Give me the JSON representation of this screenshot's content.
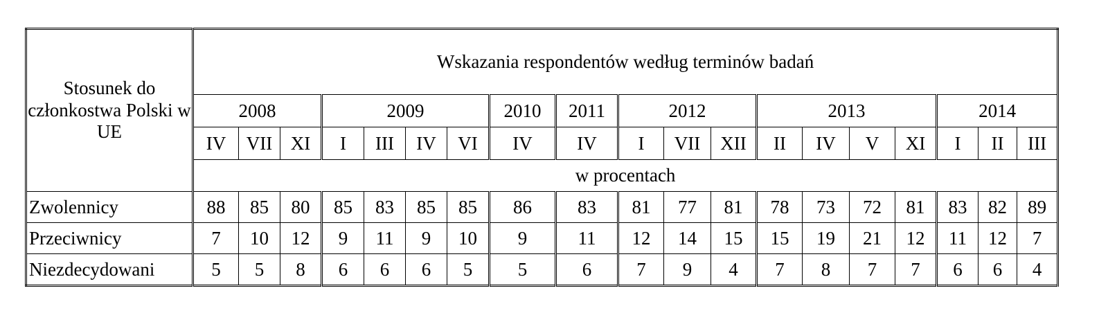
{
  "table": {
    "corner_header": "Stosunek do członkostwa Polski w UE",
    "title": "Wskazania respondentów według terminów badań",
    "unit_label": "w procentach",
    "years": [
      {
        "label": "2008",
        "months": [
          "IV",
          "VII",
          "XI"
        ]
      },
      {
        "label": "2009",
        "months": [
          "I",
          "III",
          "IV",
          "VI"
        ]
      },
      {
        "label": "2010",
        "months": [
          "IV"
        ]
      },
      {
        "label": "2011",
        "months": [
          "IV"
        ]
      },
      {
        "label": "2012",
        "months": [
          "I",
          "VII",
          "XII"
        ]
      },
      {
        "label": "2013",
        "months": [
          "II",
          "IV",
          "V",
          "XI"
        ]
      },
      {
        "label": "2014",
        "months": [
          "I",
          "II",
          "III"
        ]
      }
    ],
    "rows": [
      {
        "label": "Zwolennicy",
        "values": [
          "88",
          "85",
          "80",
          "85",
          "83",
          "85",
          "85",
          "86",
          "83",
          "81",
          "77",
          "81",
          "78",
          "73",
          "72",
          "81",
          "83",
          "82",
          "89"
        ]
      },
      {
        "label": "Przeciwnicy",
        "values": [
          "7",
          "10",
          "12",
          "9",
          "11",
          "9",
          "10",
          "9",
          "11",
          "12",
          "14",
          "15",
          "15",
          "19",
          "21",
          "12",
          "11",
          "12",
          "7"
        ]
      },
      {
        "label": "Niezdecydowani",
        "values": [
          "5",
          "5",
          "8",
          "6",
          "6",
          "6",
          "5",
          "5",
          "6",
          "7",
          "9",
          "4",
          "7",
          "8",
          "7",
          "7",
          "6",
          "6",
          "4"
        ]
      }
    ]
  }
}
